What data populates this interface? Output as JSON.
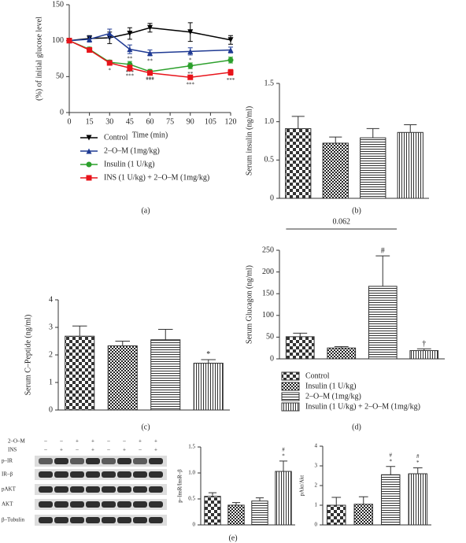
{
  "chart_data": [
    {
      "type": "line",
      "panel": "(a)",
      "ylabel": "(%) of initial glucose level",
      "xlabel": "Time (min)",
      "x": [
        0,
        15,
        30,
        45,
        60,
        90,
        120
      ],
      "xlim": [
        0,
        120
      ],
      "xticks": [
        0,
        15,
        30,
        45,
        60,
        75,
        90,
        105,
        120
      ],
      "ylim": [
        0,
        150
      ],
      "yticks": [
        0,
        50,
        100,
        150
      ],
      "grid": false,
      "series": [
        {
          "name": "Control",
          "color": "#000000",
          "marker": "triangle-down",
          "values": [
            100,
            103,
            104,
            110,
            118,
            112,
            101
          ],
          "errors": [
            2,
            4,
            8,
            8,
            6,
            13,
            6
          ],
          "significance": [
            null,
            null,
            null,
            null,
            null,
            null,
            null
          ]
        },
        {
          "name": "2–O–M (1mg/kg)",
          "color": "#1f3a93",
          "marker": "triangle-up",
          "values": [
            100,
            102,
            110,
            88,
            83,
            85,
            87
          ],
          "errors": [
            2,
            4,
            6,
            6,
            4,
            5,
            4
          ],
          "significance": [
            null,
            null,
            null,
            [
              "**"
            ],
            [
              "**"
            ],
            [
              "*"
            ],
            null
          ]
        },
        {
          "name": "Insulin (1 U/kg)",
          "color": "#2ca02c",
          "marker": "circle",
          "values": [
            100,
            88,
            70,
            67,
            57,
            65,
            73
          ],
          "errors": [
            2,
            3,
            3,
            4,
            3,
            4,
            4
          ],
          "significance": [
            null,
            null,
            null,
            [
              "***"
            ],
            [
              "***"
            ],
            [
              "**"
            ],
            null
          ]
        },
        {
          "name": "INS (1 U/kg) + 2–O–M (1mg/kg)",
          "color": "#e8141b",
          "marker": "square",
          "values": [
            100,
            87,
            69,
            62,
            55,
            49,
            56
          ],
          "errors": [
            2,
            3,
            3,
            4,
            3,
            3,
            4
          ],
          "significance": [
            null,
            null,
            [
              "*"
            ],
            [
              "***"
            ],
            [
              "***"
            ],
            [
              "***"
            ],
            [
              "***"
            ]
          ]
        }
      ]
    },
    {
      "type": "bar",
      "panel": "(b)",
      "ylabel": "Serum insulin (ng/ml)",
      "categories": [
        null,
        null,
        null,
        null
      ],
      "values": [
        0.91,
        0.72,
        0.79,
        0.86
      ],
      "errors": [
        0.16,
        0.08,
        0.12,
        0.1
      ],
      "significance": [
        null,
        null,
        null,
        null
      ],
      "patterns": [
        "checker",
        "checker-small",
        "horizontal",
        "vertical"
      ],
      "ylim": [
        0,
        1.5
      ],
      "yticks": [
        0,
        0.5,
        {
          "value": 1,
          "label": "1.0"
        },
        1.5
      ]
    },
    {
      "type": "bar",
      "panel": "(c)",
      "ylabel": "Serum C–Peptide (ng/ml)",
      "categories": [
        null,
        null,
        null,
        null
      ],
      "values": [
        2.68,
        2.33,
        2.55,
        1.7
      ],
      "errors": [
        0.37,
        0.17,
        0.38,
        0.13
      ],
      "significance": [
        null,
        null,
        null,
        [
          "*"
        ]
      ],
      "patterns": [
        "checker",
        "checker-small",
        "horizontal",
        "vertical"
      ],
      "ylim": [
        0,
        4
      ],
      "yticks": [
        0,
        1,
        2,
        3,
        4
      ]
    },
    {
      "type": "bar",
      "panel": "(d)",
      "ylabel": "Serum Glucagon (ng/ml)",
      "categories": [
        null,
        null,
        null,
        null
      ],
      "values": [
        51,
        25,
        167,
        19
      ],
      "errors": [
        8,
        3,
        70,
        4
      ],
      "significance": [
        null,
        null,
        [
          "#"
        ],
        [
          "†"
        ]
      ],
      "patterns": [
        "checker",
        "checker-small",
        "horizontal",
        "vertical"
      ],
      "ylim": [
        0,
        250
      ],
      "yticks": [
        0,
        50,
        100,
        150,
        200,
        250
      ],
      "bracket_label": "0.062",
      "legend": [
        "Control",
        "Insulin (1 U/kg)",
        "2–O–M (1mg/kg)",
        "Insulin (1 U/kg) + 2–O–M (1mg/kg)"
      ]
    },
    {
      "type": "bar",
      "ylabel": "p–InsR/InsR–β",
      "categories": [
        null,
        null,
        null,
        null
      ],
      "values": [
        0.55,
        0.38,
        0.46,
        1.03
      ],
      "errors": [
        0.07,
        0.05,
        0.06,
        0.2
      ],
      "significance": [
        null,
        null,
        null,
        [
          "#",
          "*"
        ]
      ],
      "patterns": [
        "checker",
        "checker-small",
        "horizontal",
        "vertical"
      ],
      "ylim": [
        0,
        1.5
      ],
      "yticks": [
        0,
        0.5,
        {
          "value": 1,
          "label": "1.0"
        },
        1.5
      ]
    },
    {
      "type": "bar",
      "ylabel": "pAkt/Akt",
      "categories": [
        null,
        null,
        null,
        null
      ],
      "values": [
        1.0,
        1.05,
        2.55,
        2.6
      ],
      "errors": [
        0.4,
        0.38,
        0.42,
        0.3
      ],
      "significance": [
        null,
        null,
        [
          "#",
          "*"
        ],
        [
          "#",
          "*"
        ]
      ],
      "patterns": [
        "checker",
        "checker-small",
        "horizontal",
        "vertical"
      ],
      "ylim": [
        0,
        4
      ],
      "yticks": [
        0,
        1,
        2,
        3,
        4
      ]
    }
  ],
  "blot": {
    "panel": "(e)",
    "rows": [
      "p–IR",
      "IR–β",
      "pAKT",
      "AKT",
      "β–Tubulin"
    ],
    "treatments": [
      {
        "name": "2–O–M",
        "signs": [
          "–",
          "–",
          "+",
          "+",
          "–",
          "–",
          "+",
          "+"
        ]
      },
      {
        "name": "INS",
        "signs": [
          "–",
          "+",
          "–",
          "+",
          "–",
          "+",
          "–",
          "+"
        ]
      }
    ]
  }
}
